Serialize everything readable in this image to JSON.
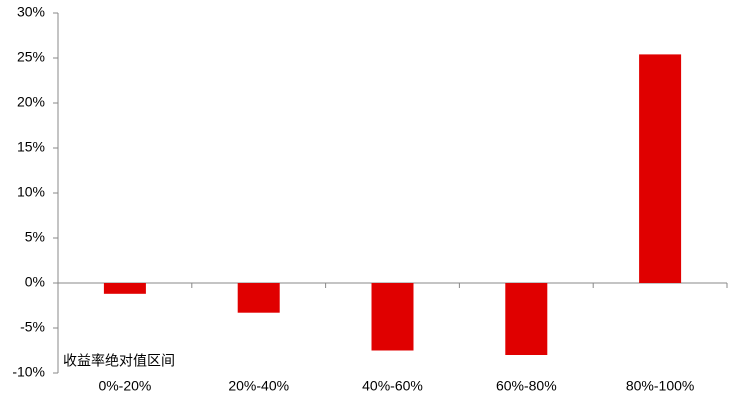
{
  "chart_data": {
    "type": "bar",
    "x_label": "收益率绝对值区间",
    "categories": [
      "0%-20%",
      "20%-40%",
      "40%-60%",
      "60%-80%",
      "80%-100%"
    ],
    "values": [
      -1.2,
      -3.3,
      -7.5,
      -8.0,
      25.4
    ],
    "color": "#e00000",
    "ylim": [
      -10,
      30
    ],
    "yticks": [
      {
        "value": -10,
        "label": "-10%"
      },
      {
        "value": -5,
        "label": "-5%"
      },
      {
        "value": 0,
        "label": "0%"
      },
      {
        "value": 5,
        "label": "5%"
      },
      {
        "value": 10,
        "label": "10%"
      },
      {
        "value": 15,
        "label": "15%"
      },
      {
        "value": 20,
        "label": "20%"
      },
      {
        "value": 25,
        "label": "25%"
      },
      {
        "value": 30,
        "label": "30%"
      }
    ],
    "grid": false
  }
}
